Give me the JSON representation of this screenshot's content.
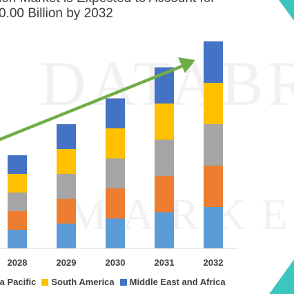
{
  "header": {
    "title_line_1": "ion Market is Expected to Account for",
    "title_line_2": "0.00 Billion by 2032"
  },
  "watermark": {
    "line_1": "DATABR",
    "line_2": "MARKETRE"
  },
  "colors": {
    "series_1": "#5B9BD5",
    "series_2": "#ED7D31",
    "series_3": "#A5A5A5",
    "series_4": "#FFC000",
    "series_5": "#4472C4",
    "arrow": "#70AD47",
    "corner_teal": "#3CC7BE"
  },
  "chart_data": {
    "type": "bar",
    "stacked": true,
    "categories": [
      "2028",
      "2029",
      "2030",
      "2031",
      "2032"
    ],
    "series": [
      {
        "name": "",
        "color": "#5B9BD5",
        "values": [
          0.9,
          1.2,
          1.45,
          1.75,
          2.0
        ]
      },
      {
        "name": "",
        "color": "#ED7D31",
        "values": [
          0.9,
          1.2,
          1.45,
          1.75,
          2.0
        ]
      },
      {
        "name": "",
        "color": "#A5A5A5",
        "values": [
          0.9,
          1.2,
          1.45,
          1.75,
          2.0
        ]
      },
      {
        "name": "South America",
        "color": "#FFC000",
        "values": [
          0.9,
          1.2,
          1.45,
          1.75,
          2.0
        ]
      },
      {
        "name": "Middle East and Africa",
        "color": "#4472C4",
        "values": [
          0.9,
          1.2,
          1.45,
          1.75,
          2.0
        ]
      }
    ],
    "ylim": [
      0,
      10
    ],
    "xlabel": "",
    "ylabel": "",
    "grid": false,
    "legend_position": "bottom",
    "legend_entries": [
      "ia Pacific",
      "South America",
      "Middle East and Africa"
    ],
    "legend_colors": [
      "#A5A5A5",
      "#FFC000",
      "#4472C4"
    ],
    "annotation": "upward trend arrow"
  }
}
